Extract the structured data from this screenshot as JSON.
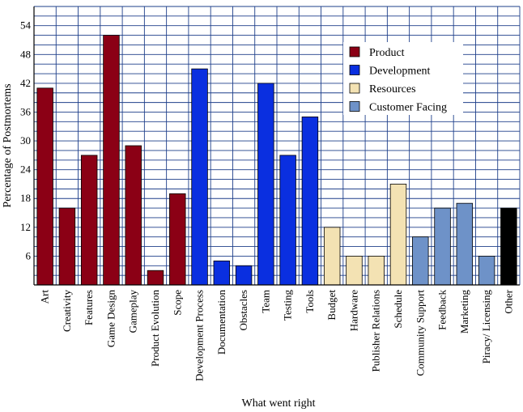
{
  "chart_data": {
    "type": "bar",
    "title": "",
    "xlabel": "What went right",
    "ylabel": "Percentage of Postmortems",
    "ylim": [
      0,
      58
    ],
    "yticks": [
      6,
      12,
      18,
      24,
      30,
      36,
      42,
      48,
      54
    ],
    "grid": true,
    "legend_position": "top-right",
    "groups": [
      {
        "name": "Product",
        "color": "#8b0015"
      },
      {
        "name": "Development",
        "color": "#0a2fe0"
      },
      {
        "name": "Resources",
        "color": "#f3e2b3"
      },
      {
        "name": "Customer Facing",
        "color": "#6e92c8"
      }
    ],
    "other_color": "#000000",
    "categories": [
      "Art",
      "Creativity",
      "Features",
      "Game Design",
      "Gameplay",
      "Product Evolution",
      "Scope",
      "Development Process",
      "Documentation",
      "Obstacles",
      "Team",
      "Testing",
      "Tools",
      "Budget",
      "Hardware",
      "Publisher Relations",
      "Schedule",
      "Community Support",
      "Feedback",
      "Marketing",
      "Piracy/ Licensing",
      "Other"
    ],
    "category_groups": [
      "Product",
      "Product",
      "Product",
      "Product",
      "Product",
      "Product",
      "Product",
      "Development",
      "Development",
      "Development",
      "Development",
      "Development",
      "Development",
      "Resources",
      "Resources",
      "Resources",
      "Resources",
      "Customer Facing",
      "Customer Facing",
      "Customer Facing",
      "Customer Facing",
      "Other"
    ],
    "values": [
      41,
      16,
      27,
      52,
      29,
      3,
      19,
      45,
      5,
      4,
      42,
      27,
      35,
      12,
      6,
      6,
      21,
      10,
      16,
      17,
      6,
      16
    ]
  }
}
